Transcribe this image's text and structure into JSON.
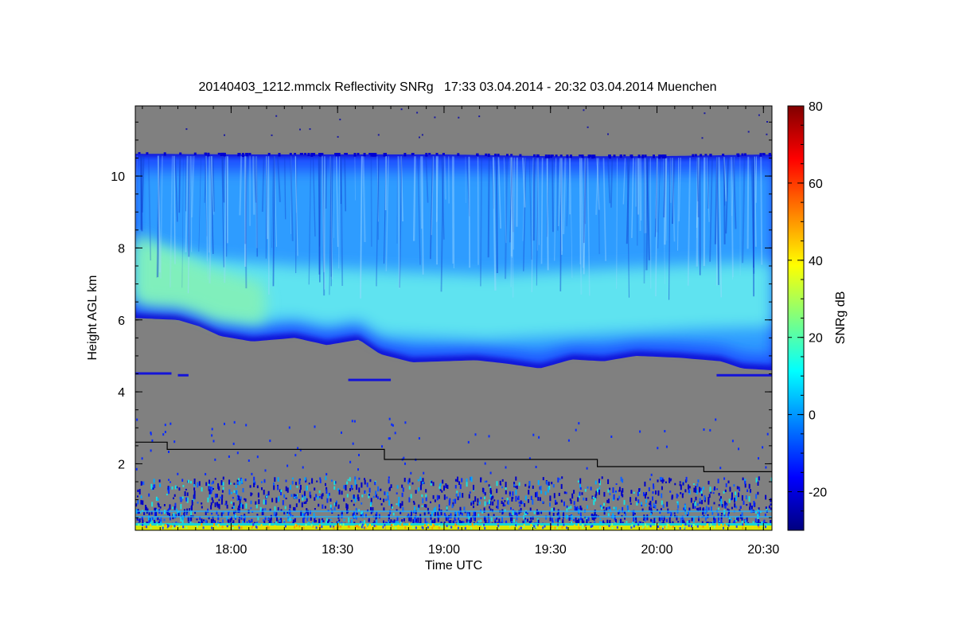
{
  "chart_data": {
    "type": "heatmap",
    "title": "20140403_1212.mmclx Reflectivity SNRg   17:33 03.04.2014 - 20:32 03.04.2014 Muenchen",
    "xlabel": "Time UTC",
    "ylabel": "Height AGL km",
    "x_unit": "hours UTC",
    "xlim": [
      17.55,
      20.54
    ],
    "ylim": [
      0.15,
      11.95
    ],
    "x_ticks": [
      {
        "value": 18.0,
        "label": "18:00"
      },
      {
        "value": 18.5,
        "label": "18:30"
      },
      {
        "value": 19.0,
        "label": "19:00"
      },
      {
        "value": 19.5,
        "label": "19:30"
      },
      {
        "value": 20.0,
        "label": "20:00"
      },
      {
        "value": 20.5,
        "label": "20:30"
      }
    ],
    "x_minor_step": 0.0833333,
    "y_ticks": [
      {
        "value": 2,
        "label": "2"
      },
      {
        "value": 4,
        "label": "4"
      },
      {
        "value": 6,
        "label": "6"
      },
      {
        "value": 8,
        "label": "8"
      },
      {
        "value": 10,
        "label": "10"
      }
    ],
    "y_minor_step": 0.5,
    "colorbar": {
      "label": "SNRg dB",
      "range": [
        -30,
        80
      ],
      "ticks": [
        {
          "value": -20,
          "label": "-20"
        },
        {
          "value": 0,
          "label": "0"
        },
        {
          "value": 20,
          "label": "20"
        },
        {
          "value": 40,
          "label": "40"
        },
        {
          "value": 60,
          "label": "60"
        },
        {
          "value": 80,
          "label": "80"
        }
      ],
      "colormap": "jet",
      "stops": [
        "#000080",
        "#0000ff",
        "#00ffff",
        "#ffff00",
        "#ff0000",
        "#800000"
      ]
    },
    "colors": {
      "no_signal": "#808080",
      "line": "#000000",
      "cloud_base": "#1414d8",
      "cloud_edge": "#1c50ff",
      "cloud_mid": "#2f9cff",
      "cloud_core": "#5fe3f0",
      "cloud_peak": "#86f2b4"
    },
    "cloud_layer": {
      "top_km": [
        [
          17.55,
          10.62
        ],
        [
          18.0,
          10.6
        ],
        [
          18.5,
          10.6
        ],
        [
          19.0,
          10.6
        ],
        [
          19.5,
          10.55
        ],
        [
          20.0,
          10.55
        ],
        [
          20.54,
          10.6
        ]
      ],
      "base_km": [
        [
          17.55,
          6.05
        ],
        [
          17.75,
          6.0
        ],
        [
          17.85,
          5.82
        ],
        [
          17.95,
          5.55
        ],
        [
          18.1,
          5.4
        ],
        [
          18.3,
          5.5
        ],
        [
          18.45,
          5.3
        ],
        [
          18.6,
          5.45
        ],
        [
          18.7,
          5.05
        ],
        [
          18.85,
          4.82
        ],
        [
          19.0,
          4.85
        ],
        [
          19.15,
          4.88
        ],
        [
          19.3,
          4.78
        ],
        [
          19.45,
          4.65
        ],
        [
          19.6,
          4.9
        ],
        [
          19.75,
          4.85
        ],
        [
          19.9,
          5.0
        ],
        [
          20.1,
          4.95
        ],
        [
          20.3,
          4.85
        ],
        [
          20.4,
          4.65
        ],
        [
          20.54,
          4.6
        ]
      ],
      "core_center_km": [
        [
          17.55,
          7.1
        ],
        [
          17.9,
          6.6
        ],
        [
          18.3,
          6.4
        ],
        [
          18.8,
          6.25
        ],
        [
          19.2,
          6.15
        ],
        [
          19.7,
          6.3
        ],
        [
          20.2,
          6.45
        ],
        [
          20.54,
          6.5
        ]
      ],
      "peak_snr_db": 18
    },
    "boundary_line": {
      "name": "",
      "points": [
        [
          17.55,
          2.6
        ],
        [
          17.7,
          2.6
        ],
        [
          17.7,
          2.4
        ],
        [
          18.72,
          2.4
        ],
        [
          18.72,
          2.12
        ],
        [
          19.72,
          2.12
        ],
        [
          19.72,
          1.92
        ],
        [
          20.22,
          1.92
        ],
        [
          20.22,
          1.78
        ],
        [
          20.54,
          1.78
        ]
      ]
    },
    "near_surface_noise": {
      "top_km": 1.65,
      "strong_band_km": [
        0.15,
        0.35
      ]
    }
  }
}
